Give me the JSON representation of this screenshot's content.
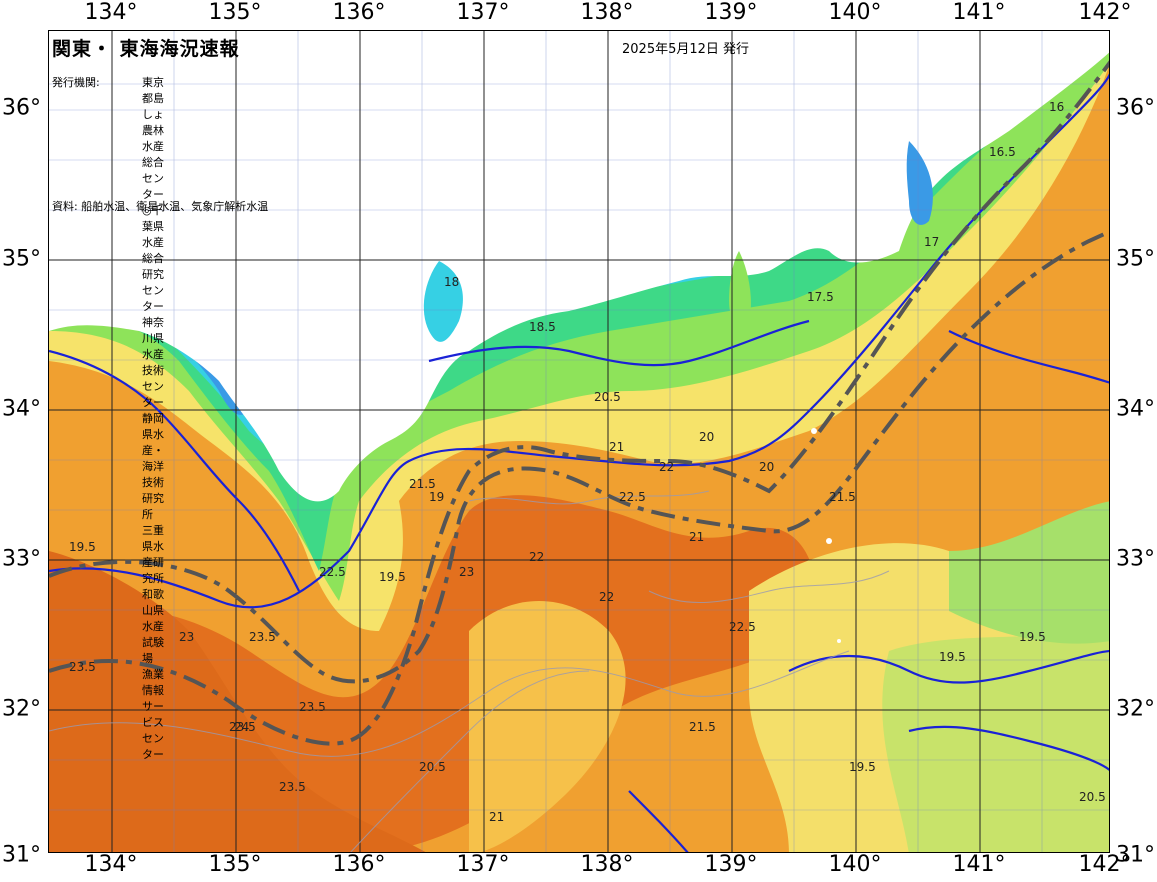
{
  "map": {
    "title": "関東・ 東海海況速報",
    "issue_date": "2025年5月12日 発行",
    "agencies_label": "発行機関:",
    "agencies": [
      "東京都島しょ農林水産総合センター",
      "◎千葉県水産総合研究センター",
      "神奈川県水産技術センター",
      "静岡県水産・ 海洋技術研究所",
      "三重県水産研究所",
      "和歌山県水産試験場",
      "漁業情報サービスセンター"
    ],
    "source": "資料: 船舶水温、衛星水温、気象庁解析水温"
  },
  "axes": {
    "lon_ticks": [
      "134°",
      "135°",
      "136°",
      "137°",
      "138°",
      "139°",
      "140°",
      "141°",
      "142°"
    ],
    "lat_ticks": [
      "36°",
      "35°",
      "34°",
      "33°",
      "32°",
      "31°"
    ]
  },
  "contour_labels": [
    "19.5",
    "18.5",
    "19",
    "18",
    "17.5",
    "17",
    "16.5",
    "16",
    "20.5",
    "20",
    "21",
    "21.5",
    "22",
    "22.5",
    "23",
    "23.5",
    "24"
  ],
  "colors": {
    "land": "#ffffff",
    "sea_cold": "#3d9be8",
    "sea_cool": "#39d4e6",
    "sea_mid": "#44dd88",
    "sea_green": "#8fe35a",
    "sea_yellow": "#f5e36a",
    "sea_orange": "#f5a230",
    "sea_warm": "#ee8a22",
    "sea_hot": "#e16a1c",
    "isotherm_line": "#1a22d6",
    "kuroshio_axis": "#555555"
  }
}
